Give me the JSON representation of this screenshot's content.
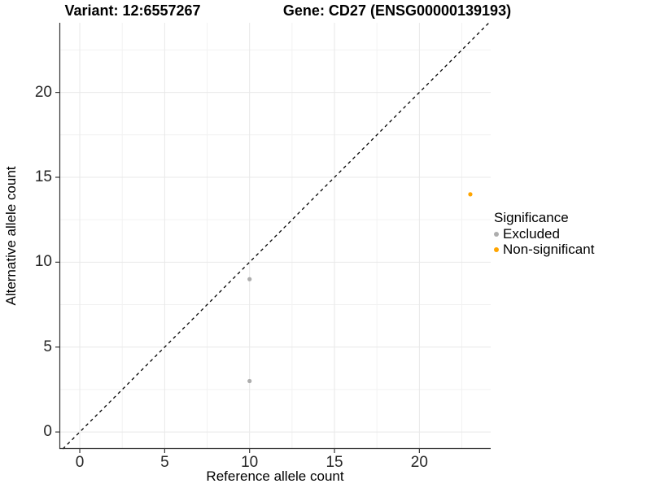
{
  "header": {
    "title_left": "Variant: 12:6557267",
    "title_right": "Gene: CD27 (ENSG00000139193)"
  },
  "chart_data": {
    "type": "scatter",
    "title_left": "Variant: 12:6557267",
    "title_right": "Gene: CD27 (ENSG00000139193)",
    "xlabel": "Reference allele count",
    "ylabel": "Alternative allele count",
    "xlim": [
      -1.2,
      24.2
    ],
    "ylim": [
      -1.0,
      24.1
    ],
    "x_ticks": [
      0,
      5,
      10,
      15,
      20
    ],
    "y_ticks": [
      0,
      5,
      10,
      15,
      20
    ],
    "x_minor_ticks": [
      2.5,
      7.5,
      12.5,
      17.5,
      22.5
    ],
    "y_minor_ticks": [
      2.5,
      7.5,
      12.5,
      17.5,
      22.5
    ],
    "grid": "major+minor",
    "identity_line": {
      "type": "y=x",
      "style": "dashed",
      "color": "#000000"
    },
    "series": [
      {
        "name": "Excluded",
        "color": "#ADADAD",
        "points": [
          [
            10,
            9
          ],
          [
            10,
            3
          ]
        ]
      },
      {
        "name": "Non-significant",
        "color": "#FFA500",
        "points": [
          [
            23,
            14
          ]
        ]
      }
    ],
    "legend": {
      "title": "Significance",
      "position": "right",
      "items": [
        {
          "label": "Excluded",
          "color": "#ADADAD"
        },
        {
          "label": "Non-significant",
          "color": "#FFA500"
        }
      ]
    },
    "colors": {
      "grid_major": "#E8E8E8",
      "grid_minor": "#F2F2F2",
      "axis_line": "#333333",
      "background": "#FFFFFF"
    }
  }
}
